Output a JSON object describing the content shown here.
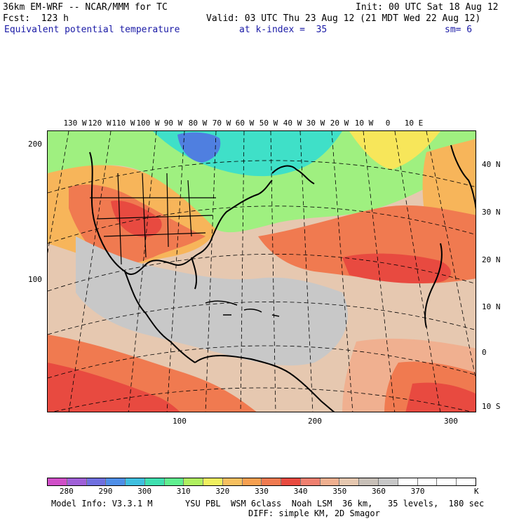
{
  "header": {
    "model_title": "36km EM-WRF -- NCAR/MMM for TC",
    "init": "Init: 00 UTC Sat 18 Aug 12",
    "forecast": "Fcst:  123 h",
    "valid": "Valid: 03 UTC Thu 23 Aug 12 (21 MDT Wed 22 Aug 12)",
    "field_name": "Equivalent potential temperature",
    "level": "at k-index =  35",
    "smoothing": "sm= 6"
  },
  "map": {
    "longitude_labels": [
      "130 W",
      "120 W",
      "110 W",
      "100 W",
      "90 W",
      "80 W",
      "70 W",
      "60 W",
      "50 W",
      "40 W",
      "30 W",
      "20 W",
      "10 W",
      "0",
      "10 E"
    ],
    "latitude_labels": [
      "40 N",
      "30 N",
      "20 N",
      "10 N",
      "0",
      "10 S"
    ],
    "y_grid_ticks": [
      "200",
      "100"
    ],
    "x_grid_ticks": [
      "100",
      "200",
      "300"
    ],
    "colors": {
      "very_cold": "#4f7fe0",
      "cold": "#3fe0c8",
      "cool": "#9ff080",
      "mild": "#f7e65a",
      "warm": "#f7b55a",
      "hot": "#f07a50",
      "very_hot": "#e84a40",
      "moist": "#f0b090",
      "tropical": "#c8c8c8"
    }
  },
  "colorbar": {
    "colors": [
      "#d04fc8",
      "#a060d8",
      "#7070e0",
      "#4f8fe8",
      "#3fc0e0",
      "#3fe0b0",
      "#60f090",
      "#b0f060",
      "#f0f060",
      "#f7c060",
      "#f7a050",
      "#f07a50",
      "#e84a40",
      "#f08070",
      "#f0b090",
      "#e6c8b0",
      "#c8c0b8",
      "#c8c8c8",
      "#ffffff",
      "#ffffff",
      "#ffffff",
      "#ffffff"
    ],
    "labels": [
      "280",
      "290",
      "300",
      "310",
      "320",
      "330",
      "340",
      "350",
      "360",
      "370"
    ],
    "unit": "K"
  },
  "footer": {
    "model_info": "Model Info: V3.3.1 M",
    "physics": "YSU PBL  WSM 6class  Noah LSM  36 km,   35 levels,  180 sec",
    "diffusion": "DIFF: simple KM, 2D Smagor"
  }
}
